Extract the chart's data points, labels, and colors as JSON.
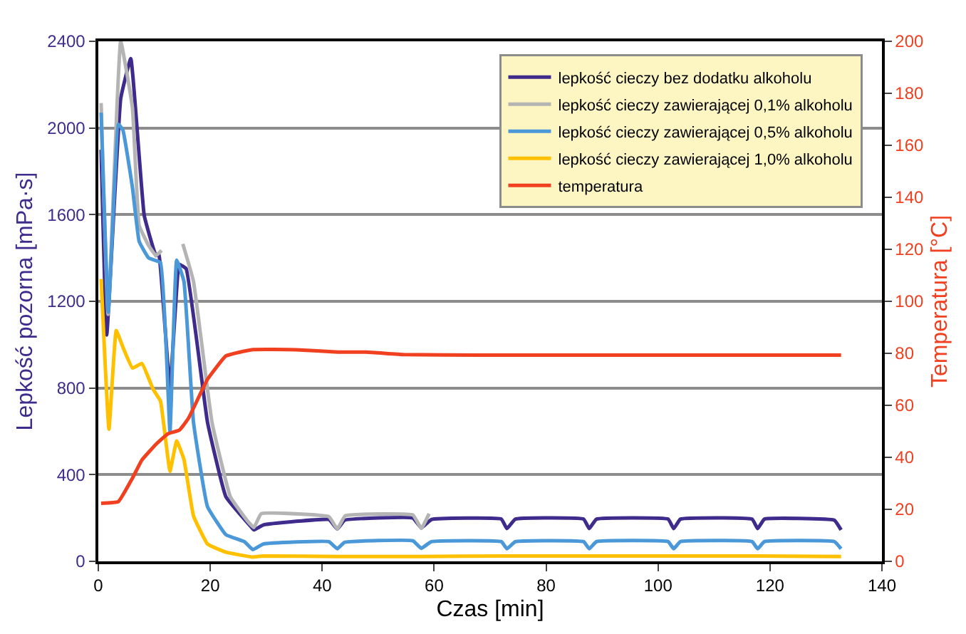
{
  "chart_data": {
    "type": "line",
    "xlabel": "Czas [min]",
    "ylabel": "Lepkość pozorna [mPa·s]",
    "y2label": "Temperatura [°C]",
    "xlim": [
      0,
      140
    ],
    "xticks": [
      0,
      20,
      40,
      60,
      80,
      100,
      120,
      140
    ],
    "ylim": [
      0,
      2400
    ],
    "yticks": [
      0,
      400,
      800,
      1200,
      1600,
      2000,
      2400
    ],
    "y2lim": [
      0,
      200
    ],
    "y2ticks": [
      0,
      20,
      40,
      60,
      80,
      100,
      120,
      140,
      160,
      180,
      200
    ],
    "grid": "y",
    "legend": "top right",
    "line_style": "solid",
    "marker": "none",
    "series": [
      {
        "name": "lepkość cieczy bez dodatku alkoholu",
        "color": "#3f2b8c",
        "x": [
          0.5,
          1.5,
          4,
          5.8,
          8.2,
          10.3,
          10.8,
          12.8,
          14.5,
          15.7,
          19.5,
          22.8,
          27.4,
          27.8,
          29.5,
          41.2,
          42.7,
          44,
          56.2,
          57.7,
          59.5,
          72,
          73,
          74.5,
          86.7,
          87.7,
          89,
          101.8,
          102.8,
          104,
          116.8,
          117.8,
          119,
          131.5,
          132.7
        ],
        "values": [
          1900,
          1045,
          2136,
          2320,
          1597,
          1411,
          1420,
          800,
          1370,
          1350,
          643,
          298,
          156,
          145,
          168,
          193,
          149,
          190,
          200,
          154,
          193,
          195,
          151,
          195,
          195,
          151,
          195,
          195,
          151,
          195,
          195,
          151,
          195,
          190,
          145
        ]
      },
      {
        "name": "lepkość cieczy zawierającej 0,1% alkoholu",
        "color": "#b4b4b4",
        "x": [
          0.5,
          1.75,
          4,
          6.1,
          7.3,
          9,
          10.3,
          11.3,
          12.8,
          15.1,
          17,
          20.3,
          23.6,
          26.6,
          27.8,
          29.1,
          41.2,
          42.7,
          44.1,
          56.2,
          57.7,
          59.1
        ],
        "values": [
          2115,
          1140,
          2400,
          2093,
          1550,
          1457,
          1411,
          1435,
          null,
          1465,
          1292,
          643,
          297,
          188,
          156,
          220,
          206,
          149,
          210,
          214,
          152,
          220
        ]
      },
      {
        "name": "lepkość cieczy zawierającej 0,5% alkoholu",
        "color": "#4a98d8",
        "x": [
          0.5,
          1.8,
          3.6,
          4.4,
          6.1,
          7.3,
          9,
          11.1,
          12.8,
          14,
          15.3,
          17,
          19.5,
          22.8,
          26.1,
          27.6,
          29.5,
          41.2,
          42.7,
          44,
          56.2,
          57.7,
          59.5,
          72,
          73,
          74.5,
          86.7,
          87.7,
          89,
          101.8,
          102.8,
          104,
          116.8,
          117.8,
          119,
          131.5,
          132.7
        ],
        "values": [
          2071,
          1150,
          2017,
          1990,
          1725,
          1476,
          1400,
          1379,
          600,
          1390,
          1292,
          643,
          253,
          123,
          91,
          54,
          80,
          91,
          58,
          88,
          95,
          60,
          91,
          91,
          58,
          91,
          91,
          58,
          91,
          91,
          58,
          91,
          91,
          58,
          91,
          91,
          58
        ]
      },
      {
        "name": "lepkość cieczy zawierającej 1,0% alkoholu",
        "color": "#ffc000",
        "x": [
          0.5,
          1.9,
          3.2,
          4.4,
          6.1,
          7.8,
          9.8,
          11.1,
          12.8,
          14,
          15.3,
          17,
          19.5,
          22.8,
          27.5,
          29.5,
          42.7,
          57.7,
          73,
          87.7,
          102.8,
          117.8,
          132.7
        ],
        "values": [
          1303,
          610,
          1065,
          988,
          892,
          913,
          794,
          740,
          416,
          556,
          470,
          210,
          80,
          42,
          20,
          25,
          22,
          22,
          25,
          25,
          25,
          25,
          22
        ]
      },
      {
        "name": "temperatura",
        "color": "#f04020",
        "axis": "y2",
        "x": [
          0.5,
          3.6,
          6.1,
          7.8,
          10.3,
          12.4,
          14.5,
          16.1,
          19.5,
          22.8,
          27.4,
          35.3,
          42.8,
          47.9,
          54.6,
          67.9,
          100,
          132.7
        ],
        "values": [
          22.3,
          23,
          32,
          39,
          45,
          49,
          50.5,
          55,
          70,
          79,
          81.4,
          81.4,
          80.5,
          80.5,
          79.5,
          79.3,
          79.3,
          79.3
        ]
      }
    ]
  }
}
